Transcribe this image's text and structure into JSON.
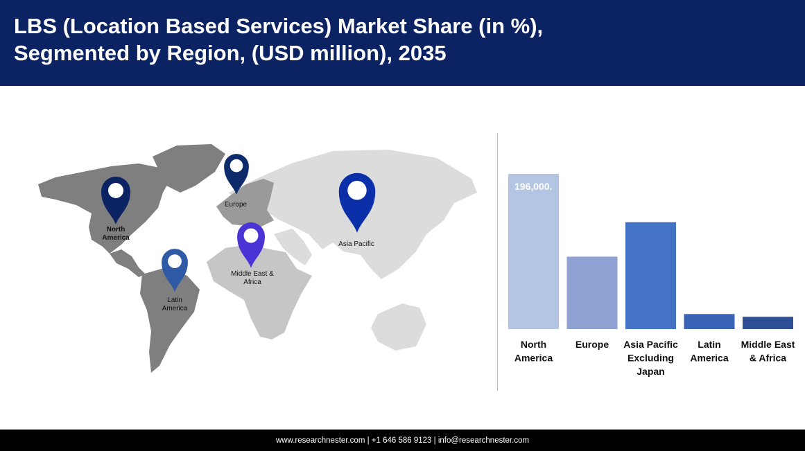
{
  "header": {
    "title_line1": "LBS (Location Based Services) Market Share (in %),",
    "title_line2": "Segmented by Region, (USD million), 2035"
  },
  "colors": {
    "header_bg": "#0b2263",
    "footer_bg": "#000000",
    "map_dark": "#7f7f7f",
    "map_light": "#dcdcdc",
    "map_mid": "#b5b5b5"
  },
  "map_pins": [
    {
      "id": "north-america",
      "label_lines": [
        "North",
        "America"
      ],
      "color": "#0b2263",
      "bold": true
    },
    {
      "id": "europe",
      "label_lines": [
        "Europe"
      ],
      "color": "#0d2a6b",
      "bold": false
    },
    {
      "id": "asia-pacific",
      "label_lines": [
        "Asia Pacific"
      ],
      "color": "#0a2fa8",
      "bold": false
    },
    {
      "id": "middle-east-africa",
      "label_lines": [
        "Middle East &",
        "Africa"
      ],
      "color": "#4a34d6",
      "bold": false
    },
    {
      "id": "latin-america",
      "label_lines": [
        "Latin",
        "America"
      ],
      "color": "#2f5aa6",
      "bold": false
    }
  ],
  "chart_data": {
    "type": "bar",
    "title": "",
    "xlabel": "",
    "ylabel": "",
    "categories": [
      [
        "North",
        "America"
      ],
      [
        "Europe"
      ],
      [
        "Asia Pacific",
        "Excluding",
        "Japan"
      ],
      [
        "Latin",
        "America"
      ],
      [
        "Middle East",
        "& Africa"
      ]
    ],
    "values": [
      196000,
      91500,
      135000,
      19000,
      15500
    ],
    "data_labels": [
      "196,000.",
      "",
      "",
      "",
      ""
    ],
    "colors": [
      "#b4c4e3",
      "#8fa2d3",
      "#4472c4",
      "#3b63b5",
      "#2e4f95"
    ],
    "ylim": [
      0,
      196000
    ],
    "grid": false,
    "legend": "none"
  },
  "footer": {
    "website": "www.researchnester.com",
    "phone": "+1 646 586 9123",
    "email": "info@researchnester.com",
    "separator": " | "
  }
}
